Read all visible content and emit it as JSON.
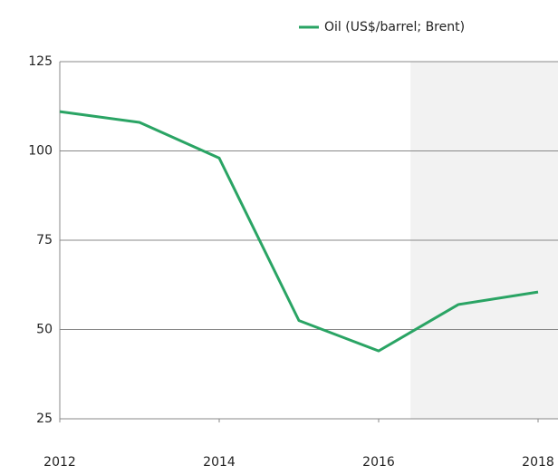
{
  "chart_data": {
    "type": "line",
    "x": [
      2012,
      2013,
      2014,
      2015,
      2016,
      2017,
      2018
    ],
    "series": [
      {
        "name": "Oil (US$/barrel; Brent)",
        "color": "#2aa464",
        "values": [
          111,
          108,
          98,
          52.5,
          44,
          57,
          60.5
        ]
      }
    ],
    "xlim": [
      2012,
      2018.25
    ],
    "xticks": [
      2012,
      2014,
      2016,
      2018
    ],
    "ylim": [
      25,
      125
    ],
    "yticks": [
      25,
      50,
      75,
      100,
      125
    ],
    "grid": true,
    "legend": "top",
    "shaded_region": {
      "x": [
        2016.4,
        2018.25
      ],
      "color": "#f2f2f2"
    }
  }
}
